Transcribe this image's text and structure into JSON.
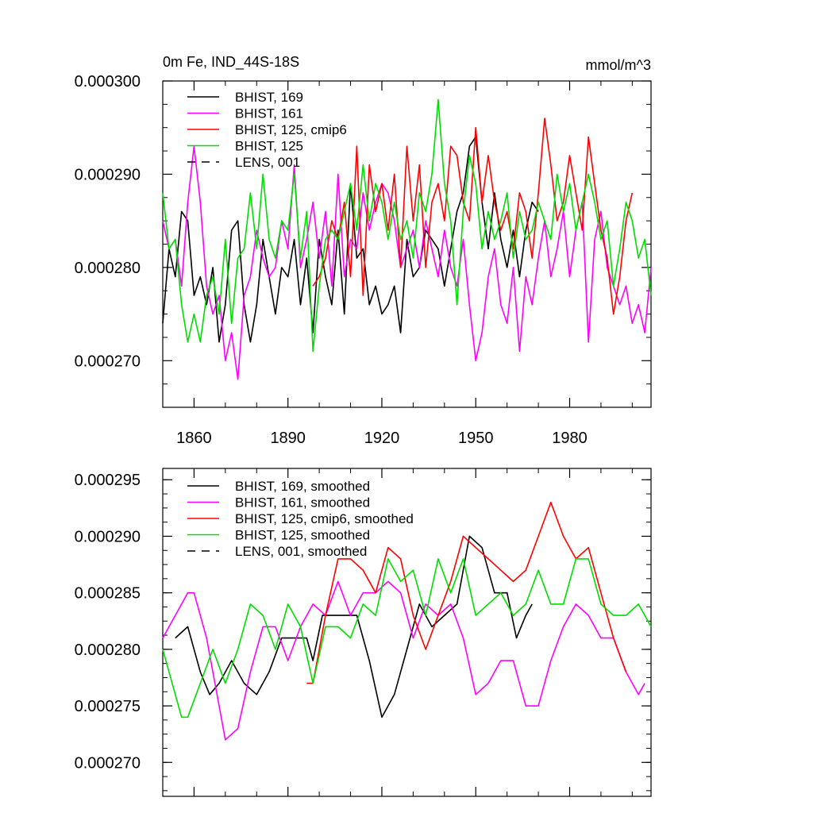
{
  "chart_data": [
    {
      "type": "line",
      "title_left": "0m Fe, IND_44S-18S",
      "title_right": "mmol/m^3",
      "xlim": [
        1850,
        2006
      ],
      "ylim": [
        0.000265,
        0.0003
      ],
      "xticks": [
        1860,
        1890,
        1920,
        1950,
        1980
      ],
      "xtick_labels": [
        "1860",
        "1890",
        "1920",
        "1950",
        "1980"
      ],
      "yticks": [
        0.0003,
        0.00029,
        0.00028,
        0.00027
      ],
      "ytick_labels": [
        "0.000300",
        "0.000290",
        "0.000280",
        "0.000270"
      ],
      "series": [
        {
          "name": "BHIST, 169",
          "color": "#000000",
          "dash": "solid",
          "x": [
            1850,
            1852,
            1854,
            1856,
            1858,
            1860,
            1862,
            1864,
            1866,
            1868,
            1870,
            1872,
            1874,
            1876,
            1878,
            1880,
            1882,
            1884,
            1886,
            1888,
            1890,
            1892,
            1894,
            1896,
            1898,
            1900,
            1902,
            1904,
            1906,
            1908,
            1910,
            1912,
            1914,
            1916,
            1918,
            1920,
            1922,
            1924,
            1926,
            1928,
            1930,
            1932,
            1934,
            1936,
            1938,
            1940,
            1942,
            1944,
            1946,
            1948,
            1950,
            1952,
            1954,
            1956,
            1958,
            1960,
            1962,
            1964,
            1966,
            1968,
            1970
          ],
          "values": [
            0.000274,
            0.000282,
            0.000279,
            0.000286,
            0.000285,
            0.000277,
            0.000279,
            0.000276,
            0.00028,
            0.000272,
            0.000276,
            0.000284,
            0.000285,
            0.000276,
            0.000272,
            0.000276,
            0.000283,
            0.000279,
            0.000275,
            0.00028,
            0.000279,
            0.000283,
            0.000276,
            0.000281,
            0.000273,
            0.000283,
            0.000279,
            0.000276,
            0.000284,
            0.000275,
            0.000289,
            0.000281,
            0.000282,
            0.000276,
            0.000278,
            0.000275,
            0.000276,
            0.000278,
            0.000273,
            0.000283,
            0.000279,
            0.00028,
            0.000284,
            0.000283,
            0.000282,
            0.000278,
            0.000282,
            0.000286,
            0.000288,
            0.000293,
            0.000294,
            0.000287,
            0.000282,
            0.000288,
            0.000283,
            0.00028,
            0.000284,
            0.000279,
            0.000284,
            0.000287,
            0.000286
          ]
        },
        {
          "name": "BHIST, 161",
          "color": "#ff00ff",
          "dash": "solid",
          "x": [
            1850,
            1852,
            1854,
            1856,
            1858,
            1860,
            1862,
            1864,
            1866,
            1868,
            1870,
            1872,
            1874,
            1876,
            1878,
            1880,
            1882,
            1884,
            1886,
            1888,
            1890,
            1892,
            1894,
            1896,
            1898,
            1900,
            1902,
            1904,
            1906,
            1908,
            1910,
            1912,
            1914,
            1916,
            1918,
            1920,
            1922,
            1924,
            1926,
            1928,
            1930,
            1932,
            1934,
            1936,
            1938,
            1940,
            1942,
            1944,
            1946,
            1948,
            1950,
            1952,
            1954,
            1956,
            1958,
            1960,
            1962,
            1964,
            1966,
            1968,
            1970,
            1972,
            1974,
            1976,
            1978,
            1980,
            1982,
            1984,
            1986,
            1988,
            1990,
            1992,
            1994,
            1996,
            1998,
            2000,
            2002,
            2004,
            2006
          ],
          "values": [
            0.000285,
            0.000282,
            0.000283,
            0.000278,
            0.000287,
            0.000293,
            0.000287,
            0.000278,
            0.000275,
            0.000277,
            0.00027,
            0.000273,
            0.000268,
            0.000277,
            0.000279,
            0.000284,
            0.000281,
            0.000279,
            0.00028,
            0.000285,
            0.000282,
            0.000291,
            0.00028,
            0.000283,
            0.000287,
            0.000281,
            0.000286,
            0.000278,
            0.00029,
            0.000279,
            0.000283,
            0.000282,
            0.000288,
            0.000284,
            0.000287,
            0.000289,
            0.000288,
            0.000285,
            0.00028,
            0.000282,
            0.000284,
            0.00028,
            0.000285,
            0.000282,
            0.000279,
            0.000284,
            0.00028,
            0.000278,
            0.000283,
            0.000276,
            0.00027,
            0.000273,
            0.000279,
            0.000282,
            0.000276,
            0.000274,
            0.00028,
            0.000271,
            0.000279,
            0.000276,
            0.000281,
            0.000285,
            0.000279,
            0.000282,
            0.000286,
            0.000279,
            0.000284,
            0.000287,
            0.000272,
            0.000283,
            0.000286,
            0.00028,
            0.000278,
            0.000276,
            0.000278,
            0.000274,
            0.000276,
            0.000273,
            0.00028
          ]
        },
        {
          "name": "BHIST, 125, cmip6",
          "color": "#ff0000",
          "dash": "solid",
          "x": [
            1898,
            1900,
            1902,
            1904,
            1906,
            1908,
            1910,
            1912,
            1914,
            1916,
            1918,
            1920,
            1922,
            1924,
            1926,
            1928,
            1930,
            1932,
            1934,
            1936,
            1938,
            1940,
            1942,
            1944,
            1946,
            1948,
            1950,
            1952,
            1954,
            1956,
            1958,
            1960,
            1962,
            1964,
            1966,
            1968,
            1970,
            1972,
            1974,
            1976,
            1978,
            1980,
            1982,
            1984,
            1986,
            1988,
            1990,
            1992,
            1994,
            1996,
            1998,
            2000
          ],
          "values": [
            0.000278,
            0.000279,
            0.000281,
            0.000285,
            0.000283,
            0.000287,
            0.000279,
            0.000293,
            0.000277,
            0.000291,
            0.000286,
            0.000289,
            0.000284,
            0.00029,
            0.00028,
            0.000293,
            0.000285,
            0.000291,
            0.00028,
            0.000287,
            0.000289,
            0.000285,
            0.000293,
            0.000292,
            0.000287,
            0.000285,
            0.000295,
            0.000287,
            0.000292,
            0.000287,
            0.000284,
            0.000286,
            0.000282,
            0.000288,
            0.000286,
            0.000281,
            0.000288,
            0.000296,
            0.000291,
            0.000285,
            0.000287,
            0.000292,
            0.000288,
            0.000284,
            0.000294,
            0.000289,
            0.000284,
            0.000281,
            0.000275,
            0.000279,
            0.000285,
            0.000288
          ]
        },
        {
          "name": "BHIST, 125",
          "color": "#00dd00",
          "dash": "solid",
          "x": [
            1850,
            1852,
            1854,
            1856,
            1858,
            1860,
            1862,
            1864,
            1866,
            1868,
            1870,
            1872,
            1874,
            1876,
            1878,
            1880,
            1882,
            1884,
            1886,
            1888,
            1890,
            1892,
            1894,
            1896,
            1898,
            1900,
            1902,
            1904,
            1906,
            1908,
            1910,
            1912,
            1914,
            1916,
            1918,
            1920,
            1922,
            1924,
            1926,
            1928,
            1930,
            1932,
            1934,
            1936,
            1938,
            1940,
            1942,
            1944,
            1946,
            1948,
            1950,
            1952,
            1954,
            1956,
            1958,
            1960,
            1962,
            1964,
            1966,
            1968,
            1970,
            1972,
            1974,
            1976,
            1978,
            1980,
            1982,
            1984,
            1986,
            1988,
            1990,
            1992,
            1994,
            1996,
            1998,
            2000,
            2002,
            2004,
            2006
          ],
          "values": [
            0.000288,
            0.000282,
            0.000283,
            0.000276,
            0.000272,
            0.000275,
            0.000272,
            0.000277,
            0.000279,
            0.000275,
            0.000283,
            0.000274,
            0.000281,
            0.000282,
            0.000288,
            0.000282,
            0.00029,
            0.000283,
            0.000281,
            0.000285,
            0.000284,
            0.00029,
            0.000281,
            0.000286,
            0.000271,
            0.000278,
            0.000283,
            0.000284,
            0.000283,
            0.000286,
            0.000289,
            0.000284,
            0.000291,
            0.000285,
            0.000289,
            0.000287,
            0.000283,
            0.000287,
            0.000283,
            0.000285,
            0.000281,
            0.000288,
            0.000286,
            0.00029,
            0.000298,
            0.000289,
            0.000285,
            0.000276,
            0.000286,
            0.000292,
            0.000289,
            0.000282,
            0.000286,
            0.000283,
            0.000285,
            0.000288,
            0.000281,
            0.000286,
            0.000283,
            0.000284,
            0.000287,
            0.000285,
            0.000283,
            0.00029,
            0.000286,
            0.000289,
            0.000284,
            0.000287,
            0.00029,
            0.000287,
            0.000283,
            0.000285,
            0.000278,
            0.000282,
            0.000287,
            0.000285,
            0.000281,
            0.000283,
            0.000277
          ]
        },
        {
          "name": "LENS, 001",
          "color": "#000000",
          "dash": "dashed",
          "x": [],
          "values": []
        }
      ]
    },
    {
      "type": "line",
      "xlim": [
        1850,
        2006
      ],
      "ylim": [
        0.000267,
        0.000296
      ],
      "xticks": [
        1860,
        1890,
        1920,
        1950,
        1980
      ],
      "yticks": [
        0.000295,
        0.00029,
        0.000285,
        0.00028,
        0.000275,
        0.00027
      ],
      "ytick_labels": [
        "0.000295",
        "0.000290",
        "0.000285",
        "0.000280",
        "0.000275",
        "0.000270"
      ],
      "series": [
        {
          "name": "BHIST, 169, smoothed",
          "color": "#000000",
          "dash": "solid",
          "x": [
            1854,
            1858,
            1862,
            1865,
            1868,
            1872,
            1876,
            1880,
            1884,
            1888,
            1892,
            1896,
            1898,
            1901,
            1904,
            1908,
            1912,
            1916,
            1920,
            1924,
            1928,
            1932,
            1936,
            1940,
            1944,
            1948,
            1952,
            1956,
            1960,
            1963,
            1966,
            1968
          ],
          "values": [
            0.000281,
            0.000282,
            0.000278,
            0.000276,
            0.000277,
            0.000279,
            0.000277,
            0.000276,
            0.000278,
            0.000281,
            0.000281,
            0.000281,
            0.000279,
            0.000283,
            0.000283,
            0.000283,
            0.000283,
            0.000279,
            0.000274,
            0.000276,
            0.00028,
            0.000284,
            0.000282,
            0.000283,
            0.000284,
            0.00029,
            0.000289,
            0.000285,
            0.000285,
            0.000281,
            0.000283,
            0.000284
          ]
        },
        {
          "name": "BHIST, 161, smoothed",
          "color": "#ff00ff",
          "dash": "solid",
          "x": [
            1850,
            1854,
            1858,
            1860,
            1864,
            1868,
            1870,
            1874,
            1878,
            1882,
            1886,
            1890,
            1894,
            1898,
            1902,
            1906,
            1910,
            1914,
            1918,
            1922,
            1926,
            1930,
            1934,
            1938,
            1942,
            1946,
            1950,
            1954,
            1958,
            1962,
            1966,
            1970,
            1974,
            1978,
            1982,
            1986,
            1990,
            1994,
            1998,
            2002,
            2004
          ],
          "values": [
            0.000281,
            0.000283,
            0.000285,
            0.000285,
            0.000281,
            0.000275,
            0.000272,
            0.000273,
            0.000278,
            0.000282,
            0.000282,
            0.000279,
            0.000282,
            0.000284,
            0.000283,
            0.000286,
            0.000283,
            0.000285,
            0.000285,
            0.000286,
            0.000285,
            0.000281,
            0.000284,
            0.000283,
            0.000284,
            0.000281,
            0.000276,
            0.000277,
            0.000279,
            0.000279,
            0.000275,
            0.000275,
            0.000279,
            0.000282,
            0.000284,
            0.000283,
            0.000281,
            0.000281,
            0.000278,
            0.000276,
            0.000277
          ]
        },
        {
          "name": "BHIST, 125, cmip6, smoothed",
          "color": "#ff0000",
          "dash": "solid",
          "x": [
            1896,
            1898,
            1902,
            1906,
            1910,
            1914,
            1918,
            1922,
            1926,
            1930,
            1934,
            1938,
            1942,
            1946,
            1950,
            1954,
            1958,
            1962,
            1966,
            1970,
            1974,
            1978,
            1982,
            1986,
            1990,
            1994,
            1998
          ],
          "values": [
            0.000277,
            0.000277,
            0.000283,
            0.000288,
            0.000288,
            0.000287,
            0.000285,
            0.000289,
            0.000288,
            0.000283,
            0.00028,
            0.000283,
            0.000286,
            0.00029,
            0.000289,
            0.000288,
            0.000287,
            0.000286,
            0.000287,
            0.00029,
            0.000293,
            0.00029,
            0.000288,
            0.000289,
            0.000285,
            0.000281,
            0.000278
          ]
        },
        {
          "name": "BHIST, 125, smoothed",
          "color": "#00dd00",
          "dash": "solid",
          "x": [
            1850,
            1852,
            1856,
            1858,
            1862,
            1866,
            1870,
            1874,
            1878,
            1882,
            1886,
            1890,
            1894,
            1898,
            1902,
            1906,
            1910,
            1914,
            1918,
            1922,
            1926,
            1930,
            1934,
            1938,
            1942,
            1946,
            1950,
            1954,
            1958,
            1962,
            1966,
            1970,
            1974,
            1978,
            1982,
            1986,
            1990,
            1994,
            1998,
            2002,
            2006
          ],
          "values": [
            0.00028,
            0.000278,
            0.000274,
            0.000274,
            0.000277,
            0.00028,
            0.000277,
            0.00028,
            0.000284,
            0.000283,
            0.00028,
            0.000284,
            0.000282,
            0.000277,
            0.000282,
            0.000282,
            0.000281,
            0.000284,
            0.000283,
            0.000288,
            0.000286,
            0.000287,
            0.000283,
            0.000288,
            0.000285,
            0.000288,
            0.000283,
            0.000284,
            0.000285,
            0.000283,
            0.000284,
            0.000287,
            0.000284,
            0.000284,
            0.000288,
            0.000288,
            0.000284,
            0.000283,
            0.000283,
            0.000284,
            0.000282
          ]
        },
        {
          "name": "LENS, 001, smoothed",
          "color": "#000000",
          "dash": "dashed",
          "x": [],
          "values": []
        }
      ]
    }
  ]
}
